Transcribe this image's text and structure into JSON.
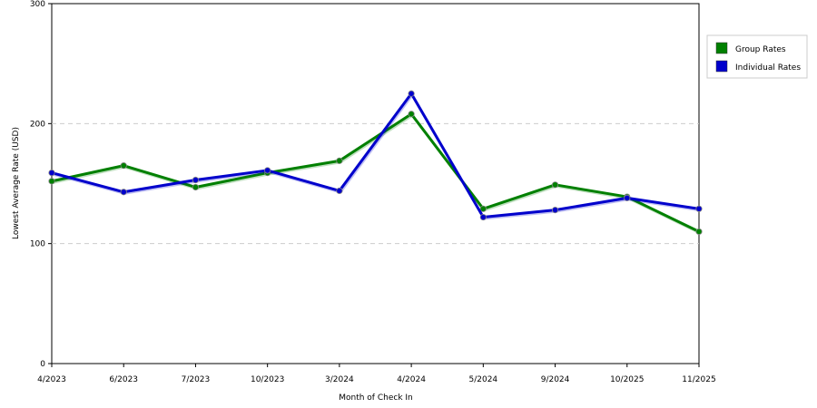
{
  "chart_data": {
    "type": "line",
    "title": "",
    "xlabel": "Month of Check In",
    "ylabel": "Lowest Average Rate (USD)",
    "categories": [
      "4/2023",
      "6/2023",
      "7/2023",
      "10/2023",
      "3/2024",
      "4/2024",
      "5/2024",
      "9/2024",
      "10/2025",
      "11/2025"
    ],
    "ylim": [
      0,
      300
    ],
    "yticks": [
      0,
      100,
      200,
      300
    ],
    "gridlines_at": [
      100,
      200
    ],
    "grid": "horizontal dashed",
    "legend_position": "right",
    "series": [
      {
        "name": "Group Rates",
        "color": "#008000",
        "values": [
          152,
          165,
          147,
          159,
          169,
          208,
          129,
          149,
          139,
          110
        ]
      },
      {
        "name": "Individual Rates",
        "color": "#0000cc",
        "values": [
          159,
          143,
          153,
          161,
          144,
          225,
          122,
          128,
          138,
          129
        ]
      }
    ]
  }
}
